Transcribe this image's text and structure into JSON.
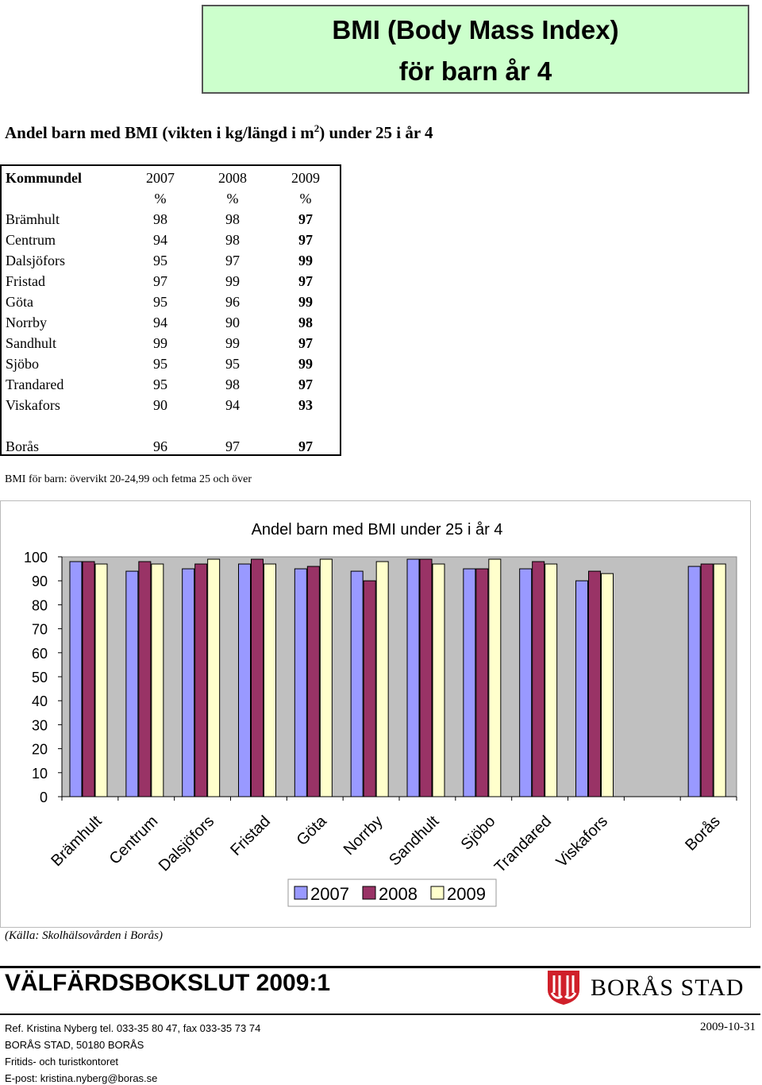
{
  "header": {
    "title_line1": "BMI (Body Mass Index)",
    "title_line2": "för barn år 4"
  },
  "subtitle": {
    "before": "Andel barn med BMI (vikten i kg/längd i m",
    "sup": "2",
    "after": ") under 25 i år 4"
  },
  "table": {
    "header": {
      "district": "Kommundel",
      "y2007": "2007",
      "y2008": "2008",
      "y2009": "2009",
      "unit": "%"
    },
    "rows": [
      {
        "name": "Brämhult",
        "v2007": "98",
        "v2008": "98",
        "v2009": "97"
      },
      {
        "name": "Centrum",
        "v2007": "94",
        "v2008": "98",
        "v2009": "97"
      },
      {
        "name": "Dalsjöfors",
        "v2007": "95",
        "v2008": "97",
        "v2009": "99"
      },
      {
        "name": "Fristad",
        "v2007": "97",
        "v2008": "99",
        "v2009": "97"
      },
      {
        "name": "Göta",
        "v2007": "95",
        "v2008": "96",
        "v2009": "99"
      },
      {
        "name": "Norrby",
        "v2007": "94",
        "v2008": "90",
        "v2009": "98"
      },
      {
        "name": "Sandhult",
        "v2007": "99",
        "v2008": "99",
        "v2009": "97"
      },
      {
        "name": "Sjöbo",
        "v2007": "95",
        "v2008": "95",
        "v2009": "99"
      },
      {
        "name": "Trandared",
        "v2007": "95",
        "v2008": "98",
        "v2009": "97"
      },
      {
        "name": "Viskafors",
        "v2007": "90",
        "v2008": "94",
        "v2009": "93"
      }
    ],
    "total": {
      "name": "Borås",
      "v2007": "96",
      "v2008": "97",
      "v2009": "97"
    }
  },
  "note": "BMI för barn: övervikt 20-24,99 och fetma 25 och över",
  "chart_data": {
    "type": "bar",
    "title": "Andel barn med BMI under 25 i år 4",
    "categories": [
      "Brämhult",
      "Centrum",
      "Dalsjöfors",
      "Fristad",
      "Göta",
      "Norrby",
      "Sandhult",
      "Sjöbo",
      "Trandared",
      "Viskafors",
      "",
      "Borås"
    ],
    "series": [
      {
        "name": "2007",
        "values": [
          98,
          94,
          95,
          97,
          95,
          94,
          99,
          95,
          95,
          90,
          null,
          96
        ]
      },
      {
        "name": "2008",
        "values": [
          98,
          98,
          97,
          99,
          96,
          90,
          99,
          95,
          98,
          94,
          null,
          97
        ]
      },
      {
        "name": "2009",
        "values": [
          97,
          97,
          99,
          97,
          99,
          98,
          97,
          99,
          97,
          93,
          null,
          97
        ]
      }
    ],
    "ylim": [
      0,
      100
    ],
    "yticks": [
      "0",
      "10",
      "20",
      "30",
      "40",
      "50",
      "60",
      "70",
      "80",
      "90",
      "100"
    ],
    "grid": false,
    "legend": "bottom",
    "colors": {
      "2007": "#9999ff",
      "2008": "#993366",
      "2009": "#ffffcc",
      "plot_bg": "#c0c0c0"
    }
  },
  "source": "(Källa: Skolhälsovården i Borås)",
  "footer": {
    "title": "VÄLFÄRDSBOKSLUT 2009:1",
    "brand": "BORÅS STAD",
    "ref": "Ref. Kristina Nyberg tel. 033-35 80 47, fax 033-35 73 74",
    "address": "BORÅS STAD, 50180 BORÅS",
    "office": "Fritids- och turistkontoret",
    "email": "E-post: kristina.nyberg@boras.se",
    "date": "2009-10-31"
  }
}
